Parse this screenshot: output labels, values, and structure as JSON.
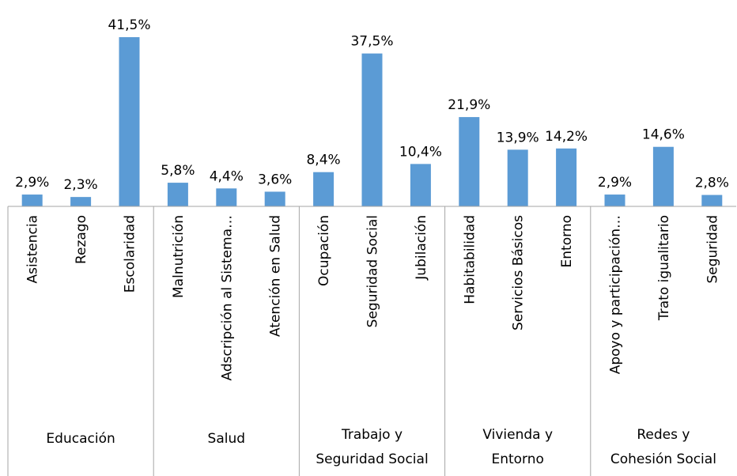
{
  "chart_data": {
    "type": "bar",
    "categories": [
      "Asistencia",
      "Rezago",
      "Escolaridad",
      "Malnutrición",
      "Adscripción al Sistema…",
      "Atención en Salud",
      "Ocupación",
      "Seguridad Social",
      "Jubilación",
      "Habitabilidad",
      "Servicios Básicos",
      "Entorno",
      "Apoyo y participación…",
      "Trato igualitario",
      "Seguridad"
    ],
    "values": [
      2.9,
      2.3,
      41.5,
      5.8,
      4.4,
      3.6,
      8.4,
      37.5,
      10.4,
      21.9,
      13.9,
      14.2,
      2.9,
      14.6,
      2.8
    ],
    "value_labels": [
      "2,9%",
      "2,3%",
      "41,5%",
      "5,8%",
      "4,4%",
      "3,6%",
      "8,4%",
      "37,5%",
      "10,4%",
      "21,9%",
      "13,9%",
      "14,2%",
      "2,9%",
      "14,6%",
      "2,8%"
    ],
    "groups": [
      [
        "Educación"
      ],
      [
        "Salud"
      ],
      [
        "Trabajo y",
        "Seguridad Social"
      ],
      [
        "Vivienda y",
        "Entorno"
      ],
      [
        "Redes y",
        "Cohesión Social"
      ]
    ],
    "color": "#5b9bd5"
  }
}
